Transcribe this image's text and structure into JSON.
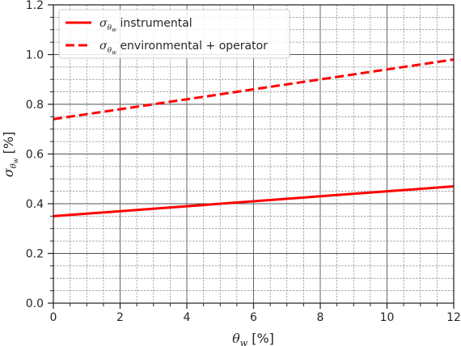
{
  "chart_data": {
    "type": "line",
    "title": "",
    "xlabel": "θ_w [%]",
    "ylabel": "σ_θw [%]",
    "xlim": [
      0,
      12
    ],
    "ylim": [
      0,
      1.2
    ],
    "x_ticks": [
      "0",
      "2",
      "4",
      "6",
      "8",
      "10",
      "12"
    ],
    "y_ticks": [
      "0.0",
      "0.2",
      "0.4",
      "0.6",
      "0.8",
      "1.0",
      "1.2"
    ],
    "grid": "major and minor",
    "legend_position": "top-left",
    "series": [
      {
        "name": "σ_θw instrumental",
        "name_suffix": "instrumental",
        "style": "solid",
        "color": "#ff0000",
        "x": [
          0,
          12
        ],
        "y": [
          0.35,
          0.47
        ]
      },
      {
        "name": "σ_θw environmental + operator",
        "name_suffix": "environmental + operator",
        "style": "dashed",
        "color": "#ff0000",
        "x": [
          0,
          12
        ],
        "y": [
          0.74,
          0.98
        ]
      }
    ]
  }
}
